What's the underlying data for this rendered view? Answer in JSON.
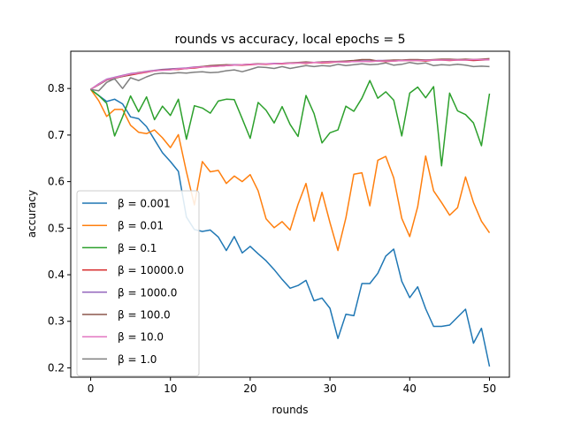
{
  "chart_data": {
    "type": "line",
    "title": "rounds vs accuracy, local epochs = 5",
    "xlabel": "rounds",
    "ylabel": "accuracy",
    "xlim": [
      -2.5,
      52.5
    ],
    "ylim": [
      0.18,
      0.88
    ],
    "xticks": [
      0,
      10,
      20,
      30,
      40,
      50
    ],
    "yticks": [
      0.2,
      0.3,
      0.4,
      0.5,
      0.6,
      0.7,
      0.8
    ],
    "ytick_labels": [
      "0.2",
      "0.3",
      "0.4",
      "0.5",
      "0.6",
      "0.7",
      "0.8"
    ],
    "grid": false,
    "legend_position": "lower-left",
    "x": [
      0,
      1,
      2,
      3,
      4,
      5,
      6,
      7,
      8,
      9,
      10,
      11,
      12,
      13,
      14,
      15,
      16,
      17,
      18,
      19,
      20,
      21,
      22,
      23,
      24,
      25,
      26,
      27,
      28,
      29,
      30,
      31,
      32,
      33,
      34,
      35,
      36,
      37,
      38,
      39,
      40,
      41,
      42,
      43,
      44,
      45,
      46,
      47,
      48,
      49,
      50
    ],
    "series": [
      {
        "name": "β = 0.001",
        "color": "#1f77b4",
        "values": [
          0.798,
          0.785,
          0.772,
          0.777,
          0.767,
          0.739,
          0.735,
          0.718,
          0.69,
          0.662,
          0.643,
          0.622,
          0.524,
          0.497,
          0.493,
          0.496,
          0.481,
          0.452,
          0.482,
          0.447,
          0.461,
          0.445,
          0.43,
          0.411,
          0.39,
          0.371,
          0.377,
          0.388,
          0.344,
          0.35,
          0.328,
          0.263,
          0.315,
          0.312,
          0.381,
          0.381,
          0.403,
          0.44,
          0.455,
          0.386,
          0.351,
          0.374,
          0.327,
          0.289,
          0.289,
          0.292,
          0.309,
          0.326,
          0.253,
          0.285,
          0.203
        ]
      },
      {
        "name": "β = 0.01",
        "color": "#ff7f0e",
        "values": [
          0.798,
          0.774,
          0.74,
          0.755,
          0.755,
          0.721,
          0.706,
          0.703,
          0.711,
          0.694,
          0.673,
          0.701,
          0.621,
          0.55,
          0.643,
          0.621,
          0.624,
          0.596,
          0.612,
          0.6,
          0.615,
          0.58,
          0.52,
          0.501,
          0.514,
          0.496,
          0.551,
          0.596,
          0.515,
          0.577,
          0.512,
          0.452,
          0.522,
          0.616,
          0.619,
          0.548,
          0.646,
          0.654,
          0.608,
          0.521,
          0.482,
          0.546,
          0.655,
          0.58,
          0.555,
          0.528,
          0.544,
          0.61,
          0.555,
          0.515,
          0.49
        ]
      },
      {
        "name": "β = 0.1",
        "color": "#2ca02c",
        "values": [
          0.798,
          0.785,
          0.768,
          0.698,
          0.739,
          0.784,
          0.75,
          0.782,
          0.733,
          0.762,
          0.742,
          0.777,
          0.691,
          0.763,
          0.758,
          0.747,
          0.773,
          0.777,
          0.776,
          0.735,
          0.693,
          0.77,
          0.753,
          0.726,
          0.761,
          0.723,
          0.697,
          0.785,
          0.746,
          0.683,
          0.705,
          0.711,
          0.762,
          0.751,
          0.779,
          0.817,
          0.779,
          0.793,
          0.775,
          0.698,
          0.79,
          0.803,
          0.78,
          0.804,
          0.634,
          0.79,
          0.752,
          0.744,
          0.726,
          0.677,
          0.789
        ]
      },
      {
        "name": "β = 10000.0",
        "color": "#d62728",
        "values": [
          0.798,
          0.809,
          0.819,
          0.823,
          0.826,
          0.829,
          0.832,
          0.835,
          0.838,
          0.84,
          0.841,
          0.841,
          0.843,
          0.844,
          0.846,
          0.847,
          0.848,
          0.849,
          0.85,
          0.85,
          0.851,
          0.852,
          0.852,
          0.853,
          0.853,
          0.854,
          0.855,
          0.854,
          0.856,
          0.855,
          0.856,
          0.857,
          0.857,
          0.858,
          0.859,
          0.858,
          0.859,
          0.858,
          0.859,
          0.86,
          0.86,
          0.86,
          0.859,
          0.861,
          0.861,
          0.86,
          0.861,
          0.861,
          0.86,
          0.861,
          0.862
        ]
      },
      {
        "name": "β = 1000.0",
        "color": "#9467bd",
        "values": [
          0.798,
          0.81,
          0.82,
          0.824,
          0.828,
          0.832,
          0.834,
          0.837,
          0.839,
          0.841,
          0.842,
          0.843,
          0.844,
          0.846,
          0.847,
          0.848,
          0.849,
          0.85,
          0.851,
          0.851,
          0.852,
          0.853,
          0.853,
          0.854,
          0.854,
          0.855,
          0.855,
          0.856,
          0.856,
          0.857,
          0.857,
          0.858,
          0.858,
          0.858,
          0.859,
          0.859,
          0.86,
          0.86,
          0.86,
          0.86,
          0.861,
          0.861,
          0.861,
          0.861,
          0.862,
          0.862,
          0.862,
          0.862,
          0.862,
          0.862,
          0.862
        ]
      },
      {
        "name": "β = 100.0",
        "color": "#8c564b",
        "values": [
          0.798,
          0.808,
          0.818,
          0.822,
          0.826,
          0.83,
          0.834,
          0.836,
          0.838,
          0.84,
          0.841,
          0.842,
          0.843,
          0.845,
          0.847,
          0.849,
          0.85,
          0.851,
          0.85,
          0.851,
          0.852,
          0.853,
          0.853,
          0.853,
          0.854,
          0.855,
          0.856,
          0.857,
          0.856,
          0.857,
          0.858,
          0.858,
          0.859,
          0.86,
          0.862,
          0.862,
          0.859,
          0.86,
          0.861,
          0.861,
          0.862,
          0.862,
          0.861,
          0.862,
          0.863,
          0.863,
          0.862,
          0.863,
          0.862,
          0.863,
          0.864
        ]
      },
      {
        "name": "β = 10.0",
        "color": "#e377c2",
        "values": [
          0.798,
          0.809,
          0.819,
          0.823,
          0.827,
          0.831,
          0.833,
          0.836,
          0.838,
          0.839,
          0.84,
          0.842,
          0.843,
          0.845,
          0.846,
          0.847,
          0.848,
          0.849,
          0.85,
          0.851,
          0.852,
          0.852,
          0.853,
          0.853,
          0.854,
          0.854,
          0.855,
          0.855,
          0.856,
          0.856,
          0.857,
          0.857,
          0.857,
          0.858,
          0.858,
          0.858,
          0.859,
          0.859,
          0.859,
          0.86,
          0.86,
          0.86,
          0.86,
          0.861,
          0.861,
          0.861,
          0.861,
          0.861,
          0.862,
          0.862,
          0.862
        ]
      },
      {
        "name": "β = 1.0",
        "color": "#7f7f7f",
        "values": [
          0.798,
          0.795,
          0.813,
          0.821,
          0.8,
          0.823,
          0.817,
          0.825,
          0.831,
          0.833,
          0.832,
          0.834,
          0.833,
          0.835,
          0.836,
          0.834,
          0.835,
          0.838,
          0.84,
          0.836,
          0.841,
          0.846,
          0.845,
          0.843,
          0.847,
          0.843,
          0.846,
          0.849,
          0.847,
          0.849,
          0.848,
          0.852,
          0.849,
          0.851,
          0.853,
          0.851,
          0.852,
          0.855,
          0.85,
          0.852,
          0.856,
          0.853,
          0.855,
          0.849,
          0.851,
          0.85,
          0.852,
          0.85,
          0.847,
          0.848,
          0.847
        ]
      }
    ]
  }
}
